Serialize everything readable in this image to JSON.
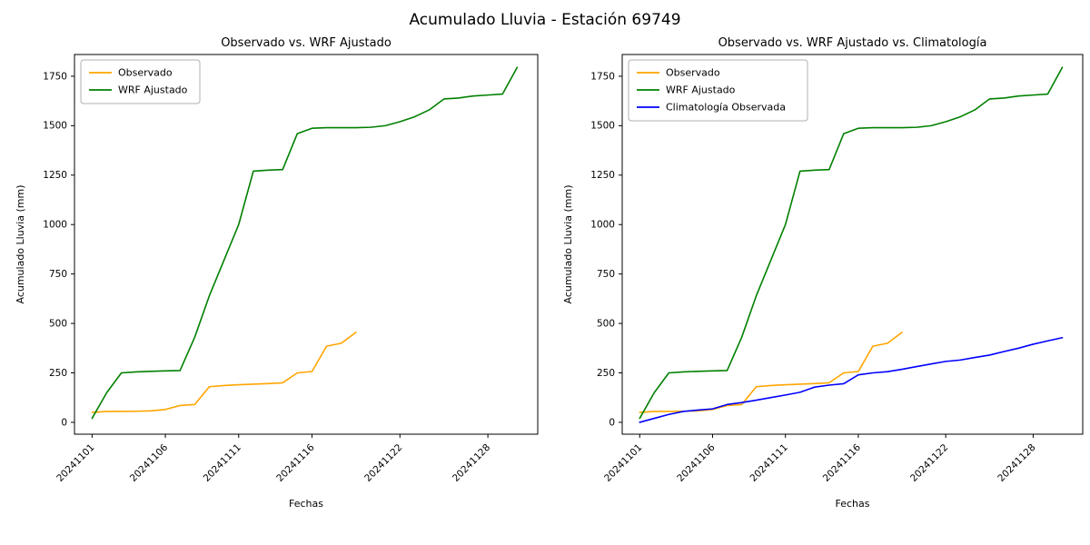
{
  "figure_title": "Acumulado Lluvia - Estación 69749",
  "colors": {
    "observado": "#ffa500",
    "wrf": "#008000",
    "climatologia": "#0000ff",
    "axis": "#000000",
    "legend_border": "#b0b0b0"
  },
  "chart_data": [
    {
      "type": "line",
      "title": "Observado vs. WRF Ajustado",
      "xlabel": "Fechas",
      "ylabel": "Acumulado Lluvia (mm)",
      "xlim": [
        -1.2,
        30.4
      ],
      "ylim": [
        -60,
        1860
      ],
      "y_ticks": [
        0,
        250,
        500,
        750,
        1000,
        1250,
        1500,
        1750
      ],
      "x_tick_labels": [
        "20241101",
        "20241106",
        "20241111",
        "20241116",
        "20241122",
        "20241128"
      ],
      "x_tick_positions": [
        0,
        5,
        10,
        15,
        21,
        27
      ],
      "legend_position": "upper-left",
      "grid": false,
      "series": [
        {
          "name": "Observado",
          "color_key": "observado",
          "x": [
            0,
            1,
            2,
            3,
            4,
            5,
            6,
            7,
            8,
            9,
            10,
            11,
            12,
            13,
            14,
            15,
            16,
            17,
            18
          ],
          "values": [
            50,
            55,
            55,
            56,
            58,
            65,
            85,
            90,
            180,
            186,
            190,
            193,
            196,
            200,
            250,
            257,
            385,
            400,
            455
          ]
        },
        {
          "name": "WRF Ajustado",
          "color_key": "wrf",
          "x": [
            0,
            1,
            2,
            3,
            4,
            5,
            6,
            7,
            8,
            9,
            10,
            11,
            12,
            13,
            14,
            15,
            16,
            17,
            18,
            19,
            20,
            21,
            22,
            23,
            24,
            25,
            26,
            27,
            28,
            29
          ],
          "values": [
            20,
            150,
            250,
            255,
            258,
            260,
            262,
            430,
            640,
            820,
            1000,
            1270,
            1275,
            1278,
            1460,
            1487,
            1490,
            1490,
            1490,
            1492,
            1500,
            1520,
            1545,
            1580,
            1635,
            1640,
            1650,
            1655,
            1660,
            1795
          ]
        }
      ]
    },
    {
      "type": "line",
      "title": "Observado vs. WRF Ajustado vs. Climatología",
      "xlabel": "Fechas",
      "ylabel": "Acumulado Lluvia (mm)",
      "xlim": [
        -1.2,
        30.4
      ],
      "ylim": [
        -60,
        1860
      ],
      "y_ticks": [
        0,
        250,
        500,
        750,
        1000,
        1250,
        1500,
        1750
      ],
      "x_tick_labels": [
        "20241101",
        "20241106",
        "20241111",
        "20241116",
        "20241122",
        "20241128"
      ],
      "x_tick_positions": [
        0,
        5,
        10,
        15,
        21,
        27
      ],
      "legend_position": "upper-left",
      "grid": false,
      "series": [
        {
          "name": "Observado",
          "color_key": "observado",
          "x": [
            0,
            1,
            2,
            3,
            4,
            5,
            6,
            7,
            8,
            9,
            10,
            11,
            12,
            13,
            14,
            15,
            16,
            17,
            18
          ],
          "values": [
            50,
            55,
            55,
            56,
            58,
            65,
            85,
            90,
            180,
            186,
            190,
            193,
            196,
            200,
            250,
            257,
            385,
            400,
            455
          ]
        },
        {
          "name": "WRF Ajustado",
          "color_key": "wrf",
          "x": [
            0,
            1,
            2,
            3,
            4,
            5,
            6,
            7,
            8,
            9,
            10,
            11,
            12,
            13,
            14,
            15,
            16,
            17,
            18,
            19,
            20,
            21,
            22,
            23,
            24,
            25,
            26,
            27,
            28,
            29
          ],
          "values": [
            20,
            150,
            250,
            255,
            258,
            260,
            262,
            430,
            640,
            820,
            1000,
            1270,
            1275,
            1278,
            1460,
            1487,
            1490,
            1490,
            1490,
            1492,
            1500,
            1520,
            1545,
            1580,
            1635,
            1640,
            1650,
            1655,
            1660,
            1795
          ]
        },
        {
          "name": "Climatología Observada",
          "color_key": "climatologia",
          "x": [
            0,
            1,
            2,
            3,
            4,
            5,
            6,
            7,
            8,
            9,
            10,
            11,
            12,
            13,
            14,
            15,
            16,
            17,
            18,
            19,
            20,
            21,
            22,
            23,
            24,
            25,
            26,
            27,
            28,
            29
          ],
          "values": [
            0,
            20,
            40,
            55,
            62,
            68,
            90,
            100,
            112,
            125,
            138,
            152,
            178,
            188,
            195,
            240,
            250,
            256,
            268,
            282,
            295,
            308,
            315,
            328,
            340,
            358,
            375,
            395,
            412,
            428
          ]
        }
      ]
    }
  ]
}
